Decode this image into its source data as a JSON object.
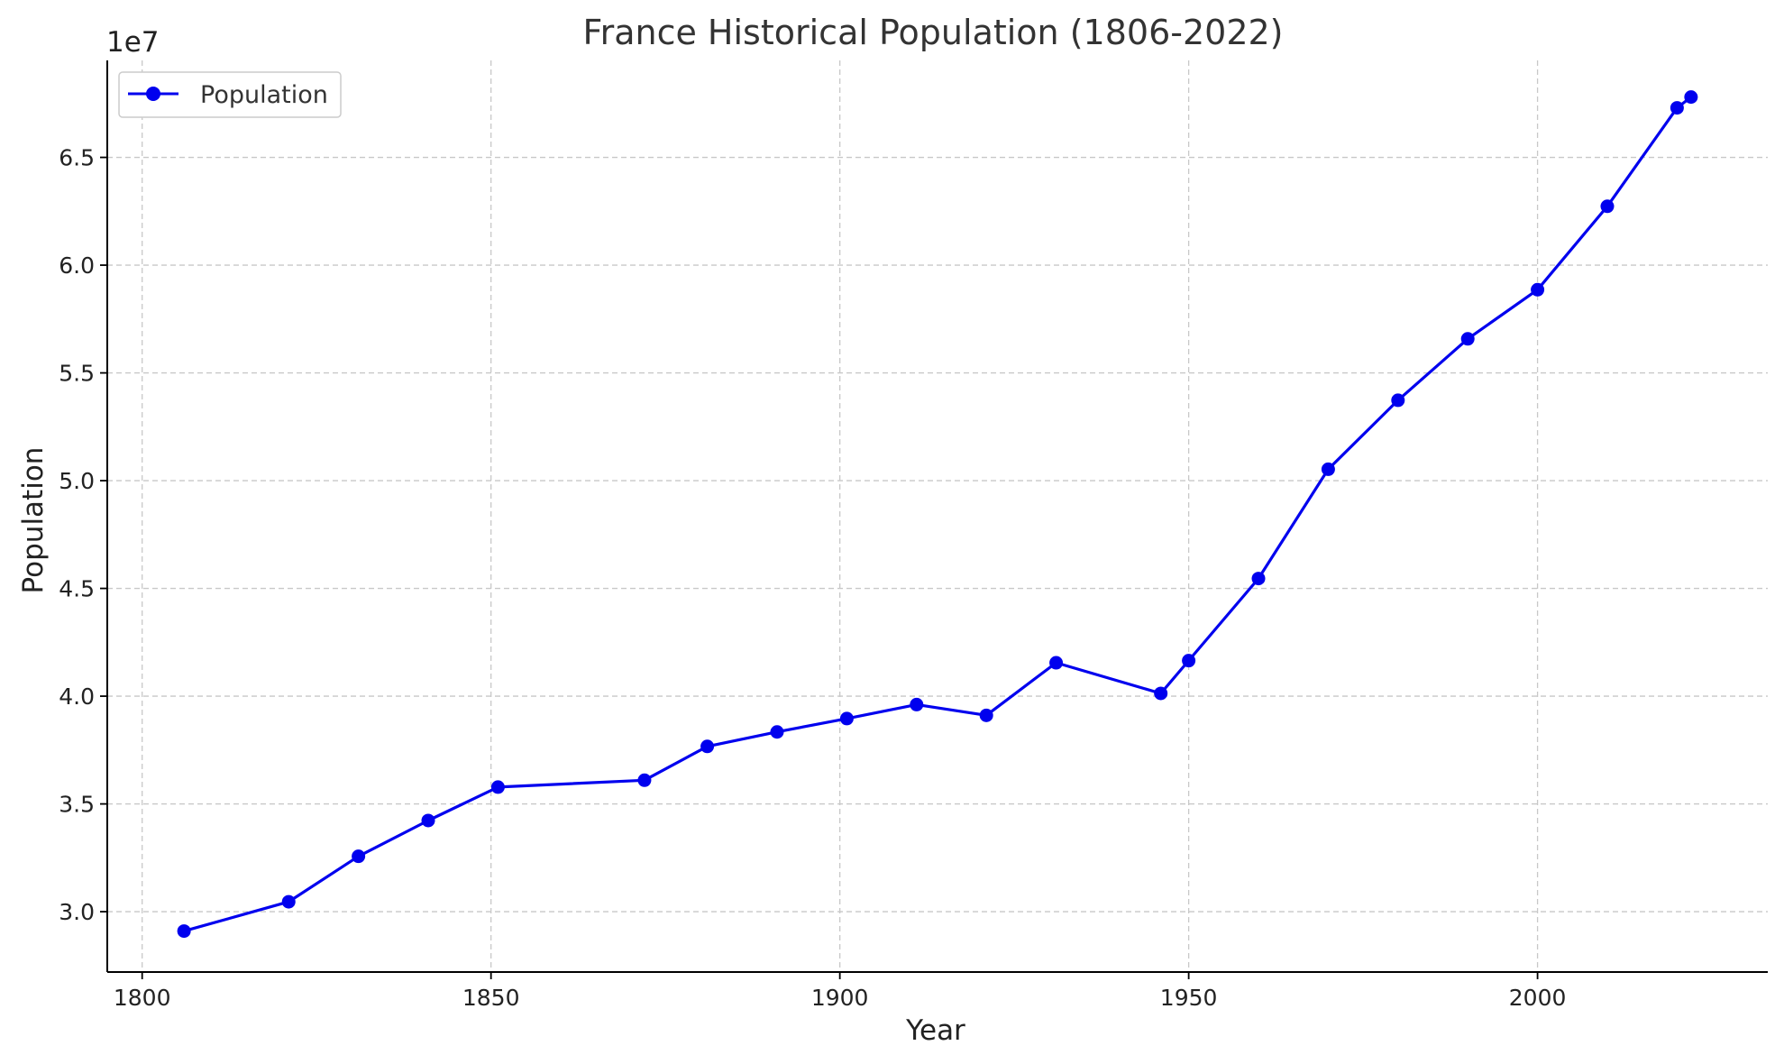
{
  "chart_data": {
    "type": "line",
    "title": "France Historical Population (1806-2022)",
    "xlabel": "Year",
    "ylabel": "Population",
    "y_offset_label": "1e7",
    "xlim": [
      1795,
      2033
    ],
    "ylim": [
      27200000,
      69500000
    ],
    "x_ticks": [
      1800,
      1850,
      1900,
      1950,
      2000
    ],
    "x_tick_labels": [
      "1800",
      "1850",
      "1900",
      "1950",
      "2000"
    ],
    "y_ticks": [
      30000000,
      35000000,
      40000000,
      45000000,
      50000000,
      55000000,
      60000000,
      65000000
    ],
    "y_tick_labels": [
      "3.0",
      "3.5",
      "4.0",
      "4.5",
      "5.0",
      "5.5",
      "6.0",
      "6.5"
    ],
    "grid": true,
    "legend": {
      "position": "top-left",
      "entries": [
        "Population"
      ]
    },
    "series": [
      {
        "name": "Population",
        "color": "#0000ee",
        "marker": "circle",
        "x": [
          1806,
          1821,
          1831,
          1841,
          1851,
          1872,
          1881,
          1891,
          1901,
          1911,
          1921,
          1931,
          1946,
          1950,
          1960,
          1970,
          1980,
          1990,
          2000,
          2010,
          2020,
          2022
        ],
        "y": [
          29100000,
          30460000,
          32570000,
          34230000,
          35780000,
          36100000,
          37670000,
          38340000,
          38960000,
          39610000,
          39110000,
          41550000,
          40130000,
          41650000,
          45460000,
          50530000,
          53730000,
          56580000,
          58860000,
          62730000,
          67300000,
          67800000
        ]
      }
    ]
  }
}
